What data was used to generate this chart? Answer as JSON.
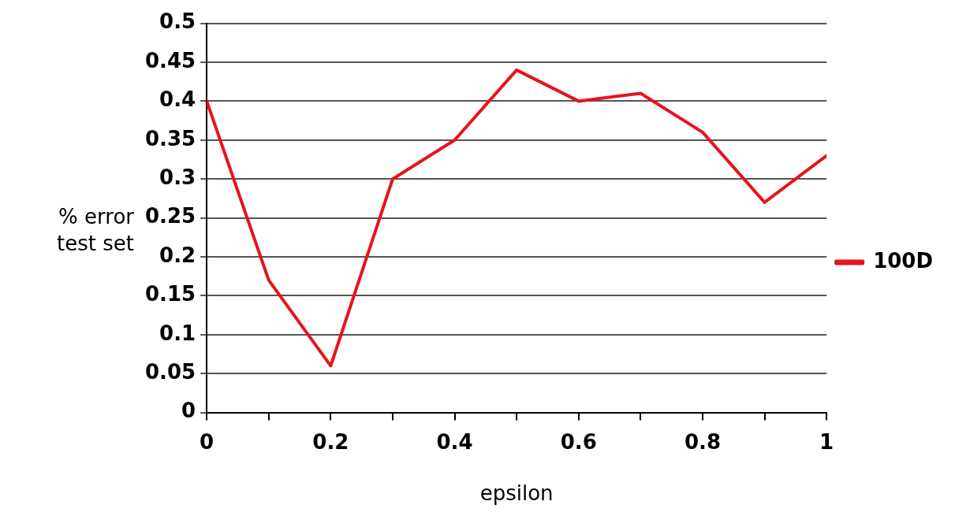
{
  "chart_data": {
    "type": "line",
    "xlabel": "epsilon",
    "ylabel": "% error test set",
    "x": [
      0,
      0.1,
      0.2,
      0.3,
      0.4,
      0.5,
      0.6,
      0.7,
      0.8,
      0.9,
      1
    ],
    "series": [
      {
        "name": "100D",
        "color": "#e8131b",
        "values": [
          0.4,
          0.17,
          0.06,
          0.3,
          0.35,
          0.44,
          0.4,
          0.41,
          0.36,
          0.27,
          0.33
        ]
      }
    ],
    "xlim": [
      0,
      1
    ],
    "xticks": [
      0,
      {
        "value": 0.1,
        "label": null
      },
      0.2,
      {
        "value": 0.3,
        "label": null
      },
      0.4,
      {
        "value": 0.5,
        "label": null
      },
      0.6,
      {
        "value": 0.7,
        "label": null
      },
      0.8,
      {
        "value": 0.9,
        "label": null
      },
      1
    ],
    "ylim": [
      0,
      0.5
    ],
    "yticks": [
      0,
      0.05,
      0.1,
      0.15,
      0.2,
      0.25,
      0.3,
      0.35,
      0.4,
      0.45,
      0.5
    ],
    "grid": "y",
    "legend": "right",
    "marker": "none",
    "line_style": "solid"
  }
}
